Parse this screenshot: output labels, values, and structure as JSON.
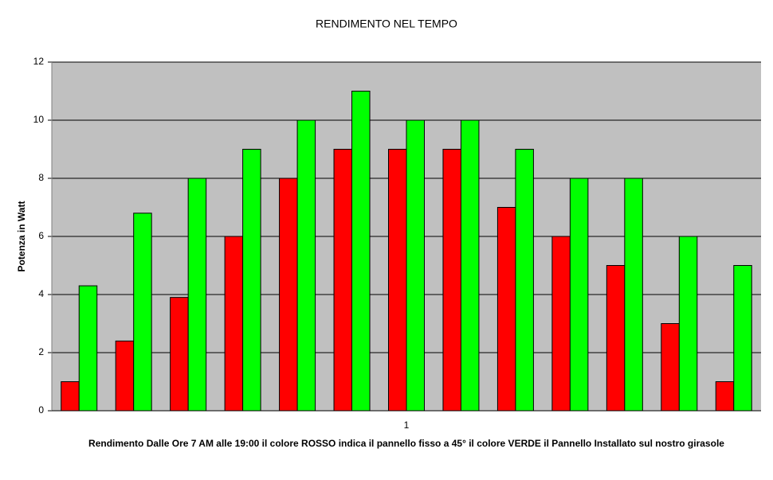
{
  "chart_data": {
    "type": "bar",
    "title": "RENDIMENTO NEL TEMPO",
    "x_label": "Rendimento Dalle Ore 7 AM alle 19:00 il colore ROSSO indica il pannello fisso a 45° il colore VERDE il Pannello Installato sul nostro girasole",
    "y_label": "Potenza in Watt",
    "categories": [
      null,
      null,
      null,
      null,
      null,
      null,
      "1",
      null,
      null,
      null,
      null,
      null,
      null
    ],
    "series": [
      {
        "color": "#ff0000",
        "values": [
          1,
          2.4,
          3.9,
          6,
          8,
          9,
          9,
          9,
          7,
          6,
          5,
          3,
          1
        ]
      },
      {
        "color": "#00ff00",
        "values": [
          4.3,
          6.8,
          8,
          9,
          10,
          11,
          10,
          10,
          9,
          8,
          8,
          6,
          5
        ]
      }
    ],
    "ylim": [
      0,
      12
    ],
    "yticks": [
      0,
      2,
      4,
      6,
      8,
      10,
      12
    ],
    "grid": true,
    "plot_background": "#c0c0c0"
  }
}
